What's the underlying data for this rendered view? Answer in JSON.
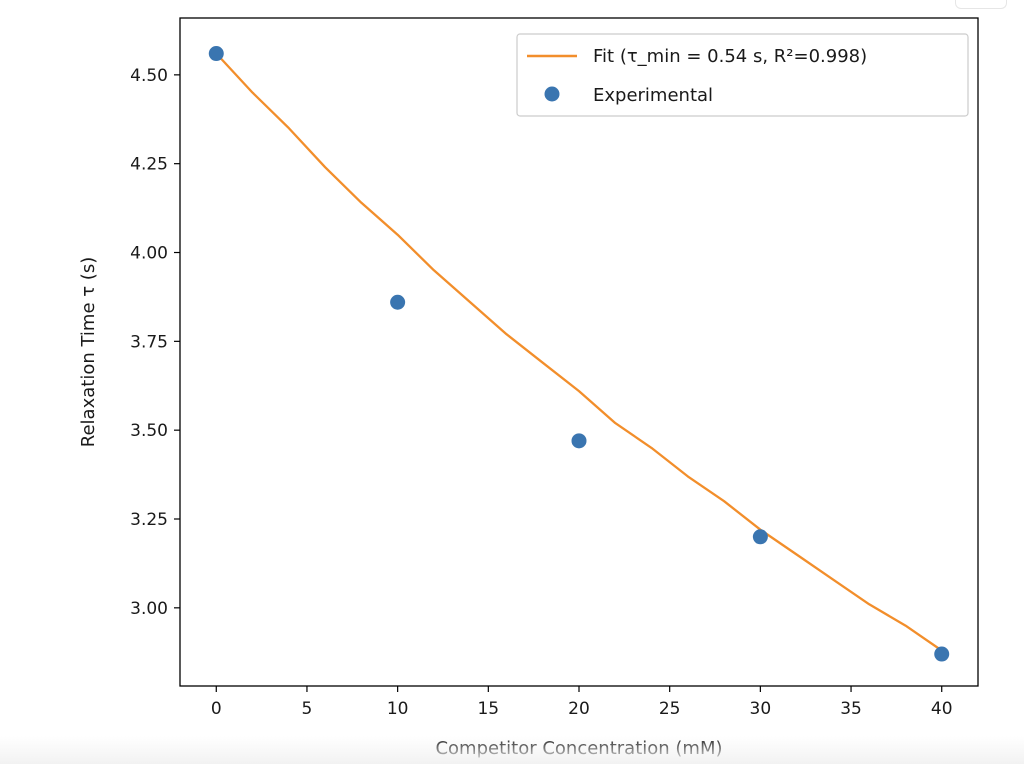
{
  "chart_data": {
    "type": "scatter",
    "title": "",
    "xlabel": "Competitor Concentration (mM)",
    "ylabel": "Relaxation Time τ (s)",
    "xlim": [
      -2,
      42
    ],
    "ylim": [
      2.78,
      4.66
    ],
    "x_ticks": [
      0,
      5,
      10,
      15,
      20,
      25,
      30,
      35,
      40
    ],
    "x_tick_labels": [
      "0",
      "5",
      "10",
      "15",
      "20",
      "25",
      "30",
      "35",
      "40"
    ],
    "y_ticks": [
      3.0,
      3.25,
      3.5,
      3.75,
      4.0,
      4.25,
      4.5
    ],
    "y_tick_labels": [
      "3.00",
      "3.25",
      "3.50",
      "3.75",
      "4.00",
      "4.25",
      "4.50"
    ],
    "grid": false,
    "legend_position": "top-right",
    "series": [
      {
        "name": "Fit (τ_min = 0.54 s, R²=0.998)",
        "kind": "line",
        "color": "#f28e2b",
        "x": [
          0,
          2,
          4,
          6,
          8,
          10,
          12,
          14,
          16,
          18,
          20,
          22,
          24,
          26,
          28,
          30,
          32,
          34,
          36,
          38,
          40
        ],
        "values": [
          4.56,
          4.45,
          4.35,
          4.24,
          4.14,
          4.05,
          3.95,
          3.86,
          3.77,
          3.69,
          3.61,
          3.52,
          3.45,
          3.37,
          3.3,
          3.22,
          3.15,
          3.08,
          3.01,
          2.95,
          2.88
        ]
      },
      {
        "name": "Experimental",
        "kind": "scatter",
        "color": "#3a75b0",
        "x": [
          0,
          10,
          20,
          30,
          40
        ],
        "values": [
          4.56,
          3.86,
          3.47,
          3.2,
          2.87
        ]
      }
    ]
  }
}
